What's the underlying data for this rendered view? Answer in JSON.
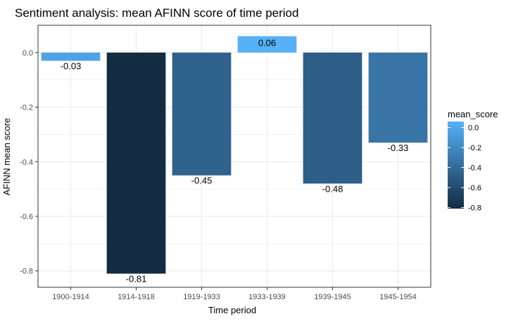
{
  "chart_data": {
    "type": "bar",
    "title": "Sentiment analysis: mean AFINN score of time period",
    "xlabel": "Time period",
    "ylabel": "AFINN mean score",
    "categories": [
      "1900-1914",
      "1914-1918",
      "1919-1933",
      "1933-1939",
      "1939-1945",
      "1945-1954"
    ],
    "values": [
      -0.03,
      -0.81,
      -0.45,
      0.06,
      -0.48,
      -0.33
    ],
    "data_labels": [
      "-0.03",
      "-0.81",
      "-0.45",
      "0.06",
      "-0.48",
      "-0.33"
    ],
    "ylim": [
      -0.86,
      0.1
    ],
    "yticks": [
      0.0,
      -0.2,
      -0.4,
      -0.6,
      -0.8
    ],
    "ytick_labels": [
      "0.0",
      "-0.2",
      "-0.4",
      "-0.6",
      "-0.8"
    ],
    "grid": true,
    "legend": {
      "title": "mean_score",
      "placement": "right",
      "ticks": [
        0.0,
        -0.2,
        -0.4,
        -0.6,
        -0.8
      ],
      "tick_labels": [
        "0.0",
        "-0.2",
        "-0.4",
        "-0.6",
        "-0.8"
      ],
      "range": [
        -0.81,
        0.06
      ]
    },
    "colors": {
      "high": "#56B1F7",
      "low": "#132B43",
      "grid": "#ebebeb",
      "panel_border": "#333333",
      "tick_text": "#4d4d4d"
    }
  }
}
